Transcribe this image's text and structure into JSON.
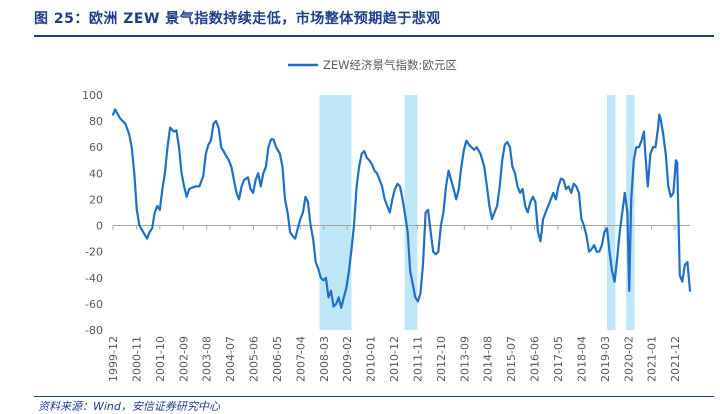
{
  "figure": {
    "title": "图 25：欧洲 ZEW 景气指数持续走低，市场整体预期趋于悲观",
    "source": "资料来源：Wind，安信证券研究中心"
  },
  "colors": {
    "line": "#1f6fc5",
    "band": "#bfe6f7",
    "title": "#1f3d8a",
    "axis": "#a6a6a6"
  },
  "chart_data": {
    "type": "line",
    "title": "",
    "xlabel": "",
    "ylabel": "",
    "ylim": [
      -80,
      100
    ],
    "yticks": [
      -80,
      -60,
      -40,
      -20,
      0,
      20,
      40,
      60,
      80,
      100
    ],
    "xlim": [
      1999.917,
      2022.5
    ],
    "legend": {
      "position": "top-center",
      "entries": [
        "ZEW经济景气指数:欧元区"
      ]
    },
    "grid": false,
    "xtick_labels": [
      "1999-12",
      "2000-11",
      "2001-10",
      "2002-09",
      "2003-08",
      "2004-07",
      "2005-06",
      "2006-05",
      "2007-04",
      "2008-03",
      "2009-02",
      "2010-01",
      "2010-12",
      "2011-11",
      "2012-10",
      "2013-09",
      "2014-08",
      "2015-07",
      "2016-06",
      "2017-05",
      "2018-04",
      "2019-03",
      "2020-02",
      "2021-01",
      "2021-12"
    ],
    "shaded_periods": [
      {
        "start": 2008.0,
        "end": 2009.25
      },
      {
        "start": 2011.33,
        "end": 2011.83
      },
      {
        "start": 2019.25,
        "end": 2019.58
      },
      {
        "start": 2020.0,
        "end": 2020.33
      }
    ],
    "series": [
      {
        "name": "ZEW经济景气指数:欧元区",
        "points": [
          [
            1999.92,
            85
          ],
          [
            2000.0,
            89
          ],
          [
            2000.2,
            82
          ],
          [
            2000.4,
            78
          ],
          [
            2000.55,
            70
          ],
          [
            2000.65,
            60
          ],
          [
            2000.75,
            40
          ],
          [
            2000.85,
            12
          ],
          [
            2000.95,
            0
          ],
          [
            2001.1,
            -5
          ],
          [
            2001.25,
            -10
          ],
          [
            2001.35,
            -5
          ],
          [
            2001.45,
            -2
          ],
          [
            2001.55,
            10
          ],
          [
            2001.65,
            15
          ],
          [
            2001.75,
            12
          ],
          [
            2001.85,
            28
          ],
          [
            2001.95,
            40
          ],
          [
            2002.05,
            60
          ],
          [
            2002.15,
            75
          ],
          [
            2002.3,
            72
          ],
          [
            2002.4,
            73
          ],
          [
            2002.5,
            60
          ],
          [
            2002.6,
            40
          ],
          [
            2002.7,
            30
          ],
          [
            2002.8,
            22
          ],
          [
            2002.9,
            28
          ],
          [
            2003.0,
            29
          ],
          [
            2003.15,
            30
          ],
          [
            2003.3,
            30
          ],
          [
            2003.45,
            38
          ],
          [
            2003.55,
            55
          ],
          [
            2003.65,
            62
          ],
          [
            2003.75,
            65
          ],
          [
            2003.85,
            78
          ],
          [
            2003.95,
            80
          ],
          [
            2004.05,
            75
          ],
          [
            2004.15,
            60
          ],
          [
            2004.3,
            55
          ],
          [
            2004.45,
            50
          ],
          [
            2004.55,
            45
          ],
          [
            2004.65,
            35
          ],
          [
            2004.75,
            25
          ],
          [
            2004.85,
            20
          ],
          [
            2004.95,
            30
          ],
          [
            2005.05,
            35
          ],
          [
            2005.2,
            37
          ],
          [
            2005.3,
            28
          ],
          [
            2005.4,
            25
          ],
          [
            2005.5,
            35
          ],
          [
            2005.6,
            40
          ],
          [
            2005.7,
            30
          ],
          [
            2005.8,
            40
          ],
          [
            2005.9,
            45
          ],
          [
            2006.0,
            60
          ],
          [
            2006.1,
            66
          ],
          [
            2006.2,
            66
          ],
          [
            2006.3,
            60
          ],
          [
            2006.45,
            55
          ],
          [
            2006.55,
            45
          ],
          [
            2006.65,
            20
          ],
          [
            2006.75,
            10
          ],
          [
            2006.85,
            -5
          ],
          [
            2006.95,
            -8
          ],
          [
            2007.05,
            -10
          ],
          [
            2007.15,
            -2
          ],
          [
            2007.25,
            5
          ],
          [
            2007.35,
            10
          ],
          [
            2007.45,
            22
          ],
          [
            2007.55,
            18
          ],
          [
            2007.65,
            0
          ],
          [
            2007.75,
            -10
          ],
          [
            2007.85,
            -28
          ],
          [
            2007.95,
            -33
          ],
          [
            2008.05,
            -40
          ],
          [
            2008.15,
            -42
          ],
          [
            2008.25,
            -40
          ],
          [
            2008.35,
            -55
          ],
          [
            2008.45,
            -50
          ],
          [
            2008.55,
            -62
          ],
          [
            2008.65,
            -60
          ],
          [
            2008.75,
            -55
          ],
          [
            2008.85,
            -63
          ],
          [
            2008.95,
            -55
          ],
          [
            2009.05,
            -48
          ],
          [
            2009.15,
            -35
          ],
          [
            2009.25,
            -18
          ],
          [
            2009.35,
            0
          ],
          [
            2009.45,
            30
          ],
          [
            2009.55,
            45
          ],
          [
            2009.65,
            55
          ],
          [
            2009.75,
            57
          ],
          [
            2009.85,
            52
          ],
          [
            2009.95,
            50
          ],
          [
            2010.05,
            47
          ],
          [
            2010.15,
            42
          ],
          [
            2010.25,
            40
          ],
          [
            2010.35,
            35
          ],
          [
            2010.45,
            30
          ],
          [
            2010.55,
            20
          ],
          [
            2010.65,
            15
          ],
          [
            2010.75,
            10
          ],
          [
            2010.85,
            20
          ],
          [
            2010.95,
            28
          ],
          [
            2011.05,
            32
          ],
          [
            2011.15,
            30
          ],
          [
            2011.25,
            20
          ],
          [
            2011.35,
            8
          ],
          [
            2011.45,
            -5
          ],
          [
            2011.55,
            -35
          ],
          [
            2011.65,
            -45
          ],
          [
            2011.75,
            -55
          ],
          [
            2011.85,
            -58
          ],
          [
            2011.95,
            -52
          ],
          [
            2012.05,
            -30
          ],
          [
            2012.15,
            10
          ],
          [
            2012.25,
            12
          ],
          [
            2012.35,
            -5
          ],
          [
            2012.45,
            -20
          ],
          [
            2012.55,
            -22
          ],
          [
            2012.65,
            -20
          ],
          [
            2012.75,
            0
          ],
          [
            2012.85,
            10
          ],
          [
            2012.95,
            30
          ],
          [
            2013.05,
            42
          ],
          [
            2013.15,
            35
          ],
          [
            2013.25,
            28
          ],
          [
            2013.35,
            20
          ],
          [
            2013.45,
            28
          ],
          [
            2013.55,
            45
          ],
          [
            2013.65,
            58
          ],
          [
            2013.75,
            65
          ],
          [
            2013.85,
            62
          ],
          [
            2013.95,
            60
          ],
          [
            2014.05,
            58
          ],
          [
            2014.15,
            60
          ],
          [
            2014.3,
            55
          ],
          [
            2014.45,
            45
          ],
          [
            2014.55,
            30
          ],
          [
            2014.65,
            15
          ],
          [
            2014.75,
            5
          ],
          [
            2014.85,
            10
          ],
          [
            2014.95,
            15
          ],
          [
            2015.05,
            30
          ],
          [
            2015.15,
            50
          ],
          [
            2015.25,
            62
          ],
          [
            2015.35,
            64
          ],
          [
            2015.45,
            60
          ],
          [
            2015.55,
            45
          ],
          [
            2015.65,
            40
          ],
          [
            2015.75,
            30
          ],
          [
            2015.85,
            25
          ],
          [
            2015.95,
            28
          ],
          [
            2016.05,
            15
          ],
          [
            2016.15,
            10
          ],
          [
            2016.25,
            18
          ],
          [
            2016.35,
            22
          ],
          [
            2016.45,
            18
          ],
          [
            2016.55,
            -5
          ],
          [
            2016.65,
            -12
          ],
          [
            2016.75,
            5
          ],
          [
            2016.85,
            10
          ],
          [
            2016.95,
            15
          ],
          [
            2017.05,
            20
          ],
          [
            2017.15,
            25
          ],
          [
            2017.25,
            20
          ],
          [
            2017.35,
            30
          ],
          [
            2017.45,
            36
          ],
          [
            2017.55,
            35
          ],
          [
            2017.65,
            28
          ],
          [
            2017.75,
            30
          ],
          [
            2017.85,
            25
          ],
          [
            2017.95,
            32
          ],
          [
            2018.05,
            30
          ],
          [
            2018.15,
            25
          ],
          [
            2018.25,
            5
          ],
          [
            2018.35,
            0
          ],
          [
            2018.45,
            -8
          ],
          [
            2018.55,
            -20
          ],
          [
            2018.65,
            -18
          ],
          [
            2018.75,
            -15
          ],
          [
            2018.85,
            -20
          ],
          [
            2018.95,
            -20
          ],
          [
            2019.05,
            -15
          ],
          [
            2019.15,
            -5
          ],
          [
            2019.25,
            -2
          ],
          [
            2019.35,
            -20
          ],
          [
            2019.45,
            -35
          ],
          [
            2019.55,
            -43
          ],
          [
            2019.65,
            -25
          ],
          [
            2019.75,
            -5
          ],
          [
            2019.85,
            10
          ],
          [
            2019.95,
            25
          ],
          [
            2020.05,
            10
          ],
          [
            2020.12,
            -50
          ],
          [
            2020.2,
            20
          ],
          [
            2020.3,
            50
          ],
          [
            2020.4,
            60
          ],
          [
            2020.5,
            60
          ],
          [
            2020.6,
            65
          ],
          [
            2020.7,
            72
          ],
          [
            2020.75,
            55
          ],
          [
            2020.85,
            30
          ],
          [
            2020.95,
            55
          ],
          [
            2021.05,
            60
          ],
          [
            2021.15,
            60
          ],
          [
            2021.25,
            75
          ],
          [
            2021.3,
            85
          ],
          [
            2021.35,
            82
          ],
          [
            2021.45,
            70
          ],
          [
            2021.55,
            55
          ],
          [
            2021.65,
            30
          ],
          [
            2021.75,
            22
          ],
          [
            2021.85,
            25
          ],
          [
            2021.95,
            50
          ],
          [
            2022.0,
            48
          ],
          [
            2022.1,
            -38
          ],
          [
            2022.2,
            -43
          ],
          [
            2022.3,
            -30
          ],
          [
            2022.4,
            -28
          ],
          [
            2022.5,
            -50
          ]
        ]
      }
    ]
  }
}
